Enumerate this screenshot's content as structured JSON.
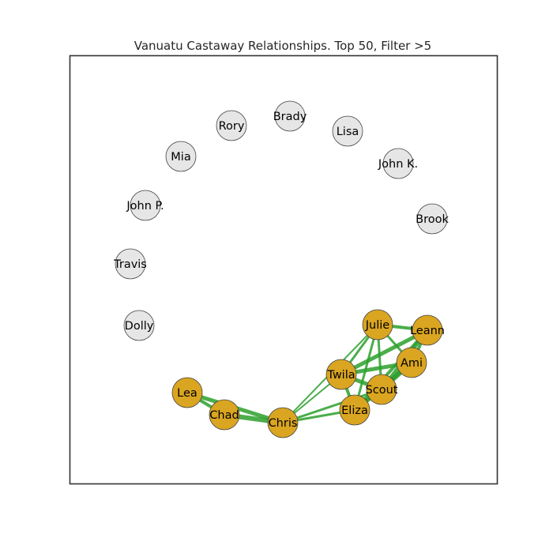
{
  "title": "Vanuatu Castaway Relationships. Top 50, Filter >5",
  "colors": {
    "background": "#ffffff",
    "frame": "#333333",
    "edge": "#2ca02c",
    "connected_node": "#daa520",
    "isolated_node": "#e6e6e6",
    "node_border": "#444444"
  },
  "nodes": [
    {
      "id": "brady",
      "label": "Brady",
      "connected": false
    },
    {
      "id": "lisa",
      "label": "Lisa",
      "connected": false
    },
    {
      "id": "john_k",
      "label": "John K.",
      "connected": false
    },
    {
      "id": "brook",
      "label": "Brook",
      "connected": false
    },
    {
      "id": "rory",
      "label": "Rory",
      "connected": false
    },
    {
      "id": "mia",
      "label": "Mia",
      "connected": false
    },
    {
      "id": "john_p",
      "label": "John P.",
      "connected": false
    },
    {
      "id": "travis",
      "label": "Travis",
      "connected": false
    },
    {
      "id": "dolly",
      "label": "Dolly",
      "connected": false
    },
    {
      "id": "julie",
      "label": "Julie",
      "connected": true
    },
    {
      "id": "leann",
      "label": "Leann",
      "connected": true
    },
    {
      "id": "ami",
      "label": "Ami",
      "connected": true
    },
    {
      "id": "twila",
      "label": "Twila",
      "connected": true
    },
    {
      "id": "scout",
      "label": "Scout",
      "connected": true
    },
    {
      "id": "eliza",
      "label": "Eliza",
      "connected": true
    },
    {
      "id": "lea",
      "label": "Lea",
      "connected": true
    },
    {
      "id": "chad",
      "label": "Chad",
      "connected": true
    },
    {
      "id": "chris",
      "label": "Chris",
      "connected": true
    }
  ],
  "edges": [
    {
      "source": "lea",
      "target": "chad",
      "weight": 4
    },
    {
      "source": "lea",
      "target": "chris",
      "weight": 5
    },
    {
      "source": "chad",
      "target": "chris",
      "weight": 6
    },
    {
      "source": "chris",
      "target": "twila",
      "weight": 2
    },
    {
      "source": "chris",
      "target": "julie",
      "weight": 2
    },
    {
      "source": "chris",
      "target": "eliza",
      "weight": 3
    },
    {
      "source": "chris",
      "target": "scout",
      "weight": 3
    },
    {
      "source": "julie",
      "target": "leann",
      "weight": 4
    },
    {
      "source": "julie",
      "target": "twila",
      "weight": 3
    },
    {
      "source": "julie",
      "target": "ami",
      "weight": 3
    },
    {
      "source": "julie",
      "target": "scout",
      "weight": 3
    },
    {
      "source": "julie",
      "target": "eliza",
      "weight": 3
    },
    {
      "source": "leann",
      "target": "twila",
      "weight": 5
    },
    {
      "source": "leann",
      "target": "ami",
      "weight": 4
    },
    {
      "source": "leann",
      "target": "scout",
      "weight": 5
    },
    {
      "source": "leann",
      "target": "eliza",
      "weight": 4
    },
    {
      "source": "twila",
      "target": "ami",
      "weight": 5
    },
    {
      "source": "twila",
      "target": "scout",
      "weight": 5
    },
    {
      "source": "twila",
      "target": "eliza",
      "weight": 4
    },
    {
      "source": "ami",
      "target": "scout",
      "weight": 6
    },
    {
      "source": "ami",
      "target": "eliza",
      "weight": 5
    },
    {
      "source": "scout",
      "target": "eliza",
      "weight": 5
    }
  ]
}
